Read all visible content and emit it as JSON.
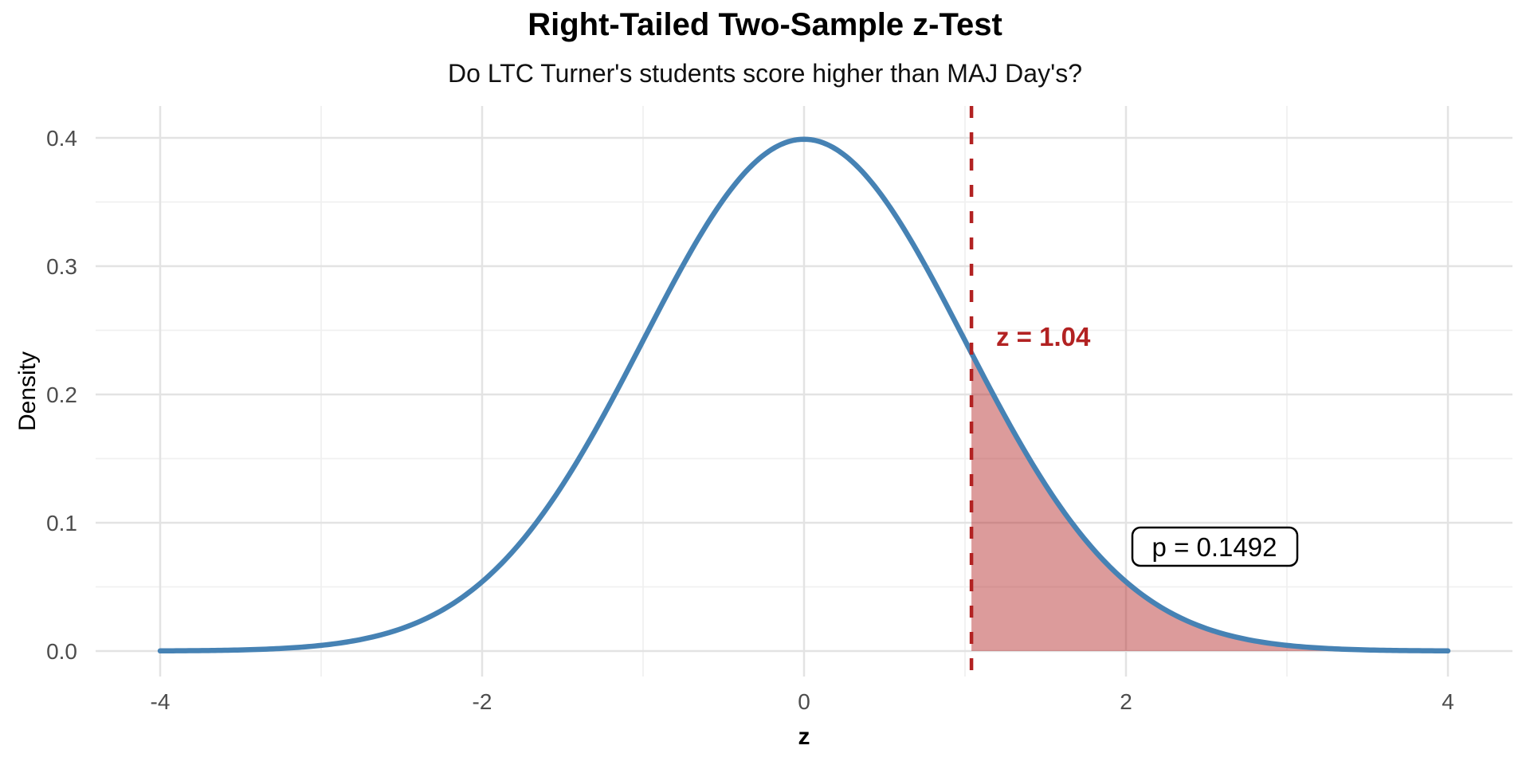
{
  "title": "Right-Tailed Two-Sample z-Test",
  "subtitle": "Do LTC Turner's students score higher than MAJ Day's?",
  "chart_data": {
    "type": "area",
    "distribution": "standard-normal-density",
    "mean": 0,
    "sd": 1,
    "x_range": [
      -4,
      4
    ],
    "ylim": [
      0,
      0.425
    ],
    "xlabel": "z",
    "ylabel": "Density",
    "x_ticks": [
      {
        "value": -4,
        "label": "-4"
      },
      {
        "value": -2,
        "label": "-2"
      },
      {
        "value": 0,
        "label": "0"
      },
      {
        "value": 2,
        "label": "2"
      },
      {
        "value": 4,
        "label": "4"
      }
    ],
    "x_minor_ticks": [
      -3,
      -1,
      1,
      3
    ],
    "y_ticks": [
      {
        "value": 0.0,
        "label": "0.0"
      },
      {
        "value": 0.1,
        "label": "0.1"
      },
      {
        "value": 0.2,
        "label": "0.2"
      },
      {
        "value": 0.3,
        "label": "0.3"
      },
      {
        "value": 0.4,
        "label": "0.4"
      }
    ],
    "y_minor_ticks": [
      0.05,
      0.15,
      0.25,
      0.35
    ],
    "z_statistic": 1.04,
    "z_label": "z = 1.04",
    "p_value": 0.1492,
    "p_label": "p = 0.1492",
    "shaded_region": "z >= 1.04",
    "curve_points": [
      {
        "z": -4,
        "density": 0.0001
      },
      {
        "z": -3,
        "density": 0.0044
      },
      {
        "z": -2,
        "density": 0.054
      },
      {
        "z": -1,
        "density": 0.242
      },
      {
        "z": 0,
        "density": 0.3989
      },
      {
        "z": 1,
        "density": 0.242
      },
      {
        "z": 1.04,
        "density": 0.2323
      },
      {
        "z": 2,
        "density": 0.054
      },
      {
        "z": 3,
        "density": 0.0044
      },
      {
        "z": 4,
        "density": 0.0001
      }
    ],
    "grid": true,
    "legend_position": "none",
    "colors": {
      "curve": "#4682B4",
      "tail_shade": "rgba(178,34,34,0.45)",
      "critical_line": "#B22222",
      "z_label_text": "#B22222",
      "grid_major": "#E3E3E3",
      "grid_minor": "#F0F0F0",
      "tick_text": "#4D4D4D",
      "background": "#FFFFFF",
      "p_box_fill": "#FFFFFF",
      "p_box_border": "#000000"
    }
  }
}
